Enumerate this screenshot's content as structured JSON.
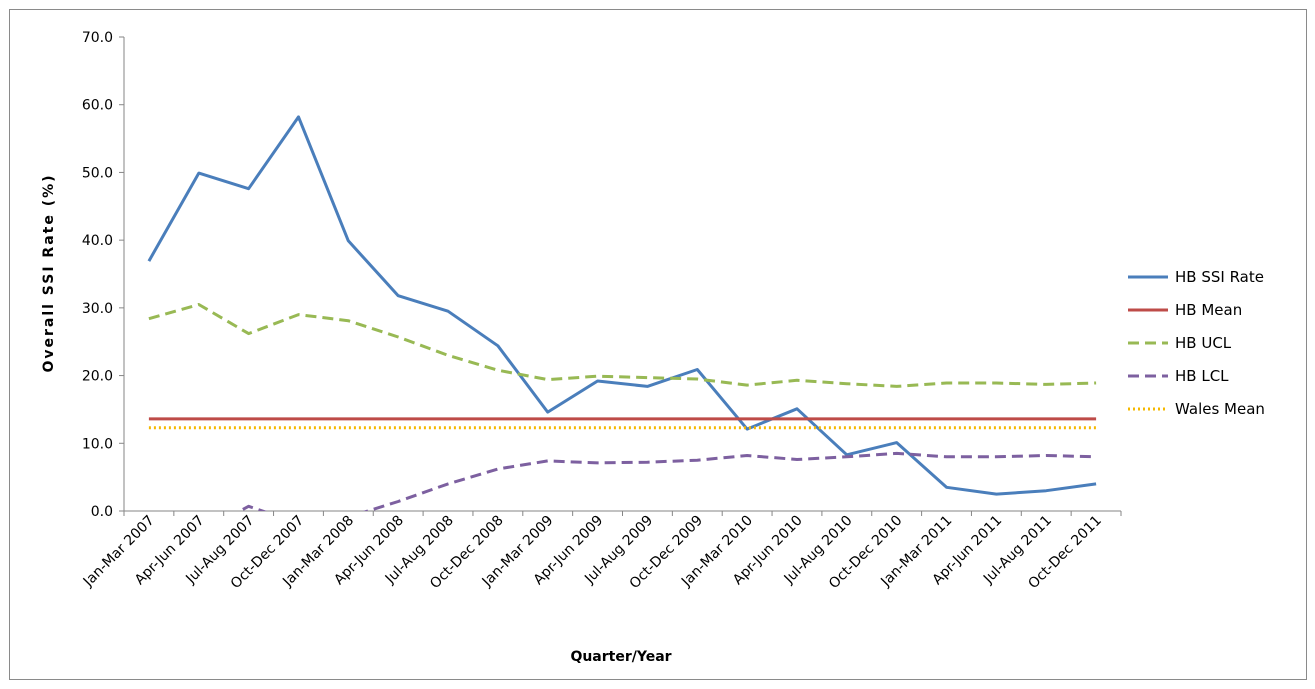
{
  "chart_data": {
    "type": "line",
    "xlabel": "Quarter/Year",
    "ylabel": "Overall SSI Rate (%)",
    "ylim": [
      0,
      70
    ],
    "yticks": [
      "0.0",
      "10.0",
      "20.0",
      "30.0",
      "40.0",
      "50.0",
      "60.0",
      "70.0"
    ],
    "grid": false,
    "legend_position": "right",
    "categories": [
      "Jan-Mar 2007",
      "Apr-Jun 2007",
      "Jul-Aug 2007",
      "Oct-Dec 2007",
      "Jan-Mar 2008",
      "Apr-Jun 2008",
      "Jul-Aug 2008",
      "Oct-Dec 2008",
      "Jan-Mar 2009",
      "Apr-Jun 2009",
      "Jul-Aug 2009",
      "Oct-Dec 2009",
      "Jan-Mar 2010",
      "Apr-Jun 2010",
      "Jul-Aug 2010",
      "Oct-Dec 2010",
      "Jan-Mar 2011",
      "Apr-Jun 2011",
      "Jul-Aug 2011",
      "Oct-Dec 2011"
    ],
    "series": [
      {
        "name": "HB SSI Rate",
        "color": "#4a7ebb",
        "style": "solid",
        "values": [
          36.9,
          49.9,
          47.6,
          58.2,
          39.9,
          31.8,
          29.5,
          24.4,
          14.6,
          19.2,
          18.4,
          20.9,
          12.1,
          15.1,
          8.3,
          10.1,
          3.5,
          2.5,
          3.0,
          4.0
        ]
      },
      {
        "name": "HB Mean",
        "color": "#be4b48",
        "style": "solid",
        "values": [
          13.6,
          13.6,
          13.6,
          13.6,
          13.6,
          13.6,
          13.6,
          13.6,
          13.6,
          13.6,
          13.6,
          13.6,
          13.6,
          13.6,
          13.6,
          13.6,
          13.6,
          13.6,
          13.6,
          13.6
        ]
      },
      {
        "name": "HB UCL",
        "color": "#98b954",
        "style": "dashed",
        "values": [
          28.4,
          30.5,
          26.2,
          29.0,
          28.1,
          25.7,
          23.0,
          20.8,
          19.4,
          19.9,
          19.7,
          19.5,
          18.6,
          19.3,
          18.8,
          18.4,
          18.9,
          18.9,
          18.7,
          18.9
        ]
      },
      {
        "name": "HB LCL",
        "color": "#7d60a0",
        "style": "dashed",
        "values": [
          -1.2,
          -3.3,
          0.7,
          -1.8,
          -0.9,
          1.4,
          4.0,
          6.2,
          7.4,
          7.1,
          7.2,
          7.5,
          8.2,
          7.6,
          8.0,
          8.5,
          8.0,
          8.0,
          8.2,
          8.0
        ]
      },
      {
        "name": "Wales Mean",
        "color": "#f5b800",
        "style": "dotted",
        "values": [
          12.3,
          12.3,
          12.3,
          12.3,
          12.3,
          12.3,
          12.3,
          12.3,
          12.3,
          12.3,
          12.3,
          12.3,
          12.3,
          12.3,
          12.3,
          12.3,
          12.3,
          12.3,
          12.3,
          12.3
        ]
      }
    ]
  }
}
